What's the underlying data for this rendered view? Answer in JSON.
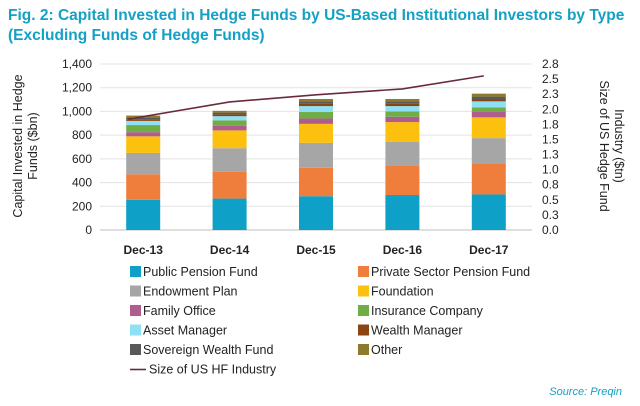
{
  "figure": {
    "title_line1": "Fig. 2: Capital Invested in Hedge Funds by US-Based Institutional Investors by Type",
    "title_line2": "(Excluding Funds of Hedge Funds)",
    "source": "Source: Preqin"
  },
  "chart_data": {
    "type": "bar",
    "stacked": true,
    "categories": [
      "Dec-13",
      "Dec-14",
      "Dec-15",
      "Dec-16",
      "Dec-17"
    ],
    "ylabel_left": [
      "Capital Invested in Hedge",
      "Funds ($bn)"
    ],
    "ylabel_right": [
      "Size of US Hedge Fund",
      "Industry ($tn)"
    ],
    "ylim_left": [
      0,
      1400
    ],
    "yticks_left": [
      "0",
      "200",
      "400",
      "600",
      "800",
      "1,000",
      "1,200",
      "1,400"
    ],
    "ylim_right": [
      0,
      2.8
    ],
    "yticks_right": [
      "0.0",
      "0.3",
      "0.5",
      "0.8",
      "1.0",
      "1.3",
      "1.5",
      "1.8",
      "2.0",
      "2.3",
      "2.5",
      "2.8"
    ],
    "series": [
      {
        "name": "Public Pension Fund",
        "color": "#0ea0c6",
        "values": [
          255,
          265,
          285,
          295,
          300
        ]
      },
      {
        "name": "Private Sector Pension Fund",
        "color": "#ef7d3c",
        "values": [
          215,
          225,
          240,
          245,
          260
        ]
      },
      {
        "name": "Endowment Plan",
        "color": "#a6a6a6",
        "values": [
          180,
          200,
          210,
          205,
          215
        ]
      },
      {
        "name": "Foundation",
        "color": "#fcc00e",
        "values": [
          140,
          150,
          160,
          165,
          175
        ]
      },
      {
        "name": "Family Office",
        "color": "#b05c8e",
        "values": [
          35,
          40,
          45,
          45,
          45
        ]
      },
      {
        "name": "Insurance Company",
        "color": "#70ad47",
        "values": [
          60,
          45,
          55,
          45,
          40
        ]
      },
      {
        "name": "Asset Manager",
        "color": "#8ee0f5",
        "values": [
          35,
          35,
          50,
          45,
          50
        ]
      },
      {
        "name": "Wealth Manager",
        "color": "#8b4513",
        "values": [
          15,
          15,
          20,
          20,
          20
        ]
      },
      {
        "name": "Sovereign Wealth Fund",
        "color": "#595959",
        "values": [
          15,
          15,
          20,
          20,
          20
        ]
      },
      {
        "name": "Other",
        "color": "#8d7a2c",
        "values": [
          15,
          15,
          20,
          20,
          25
        ]
      }
    ],
    "line": {
      "name": "Size of US HF Industry",
      "color": "#6b2a3c",
      "axis": "right",
      "values": [
        1.87,
        2.16,
        2.28,
        2.38,
        2.6
      ]
    },
    "legend": "bottom"
  }
}
